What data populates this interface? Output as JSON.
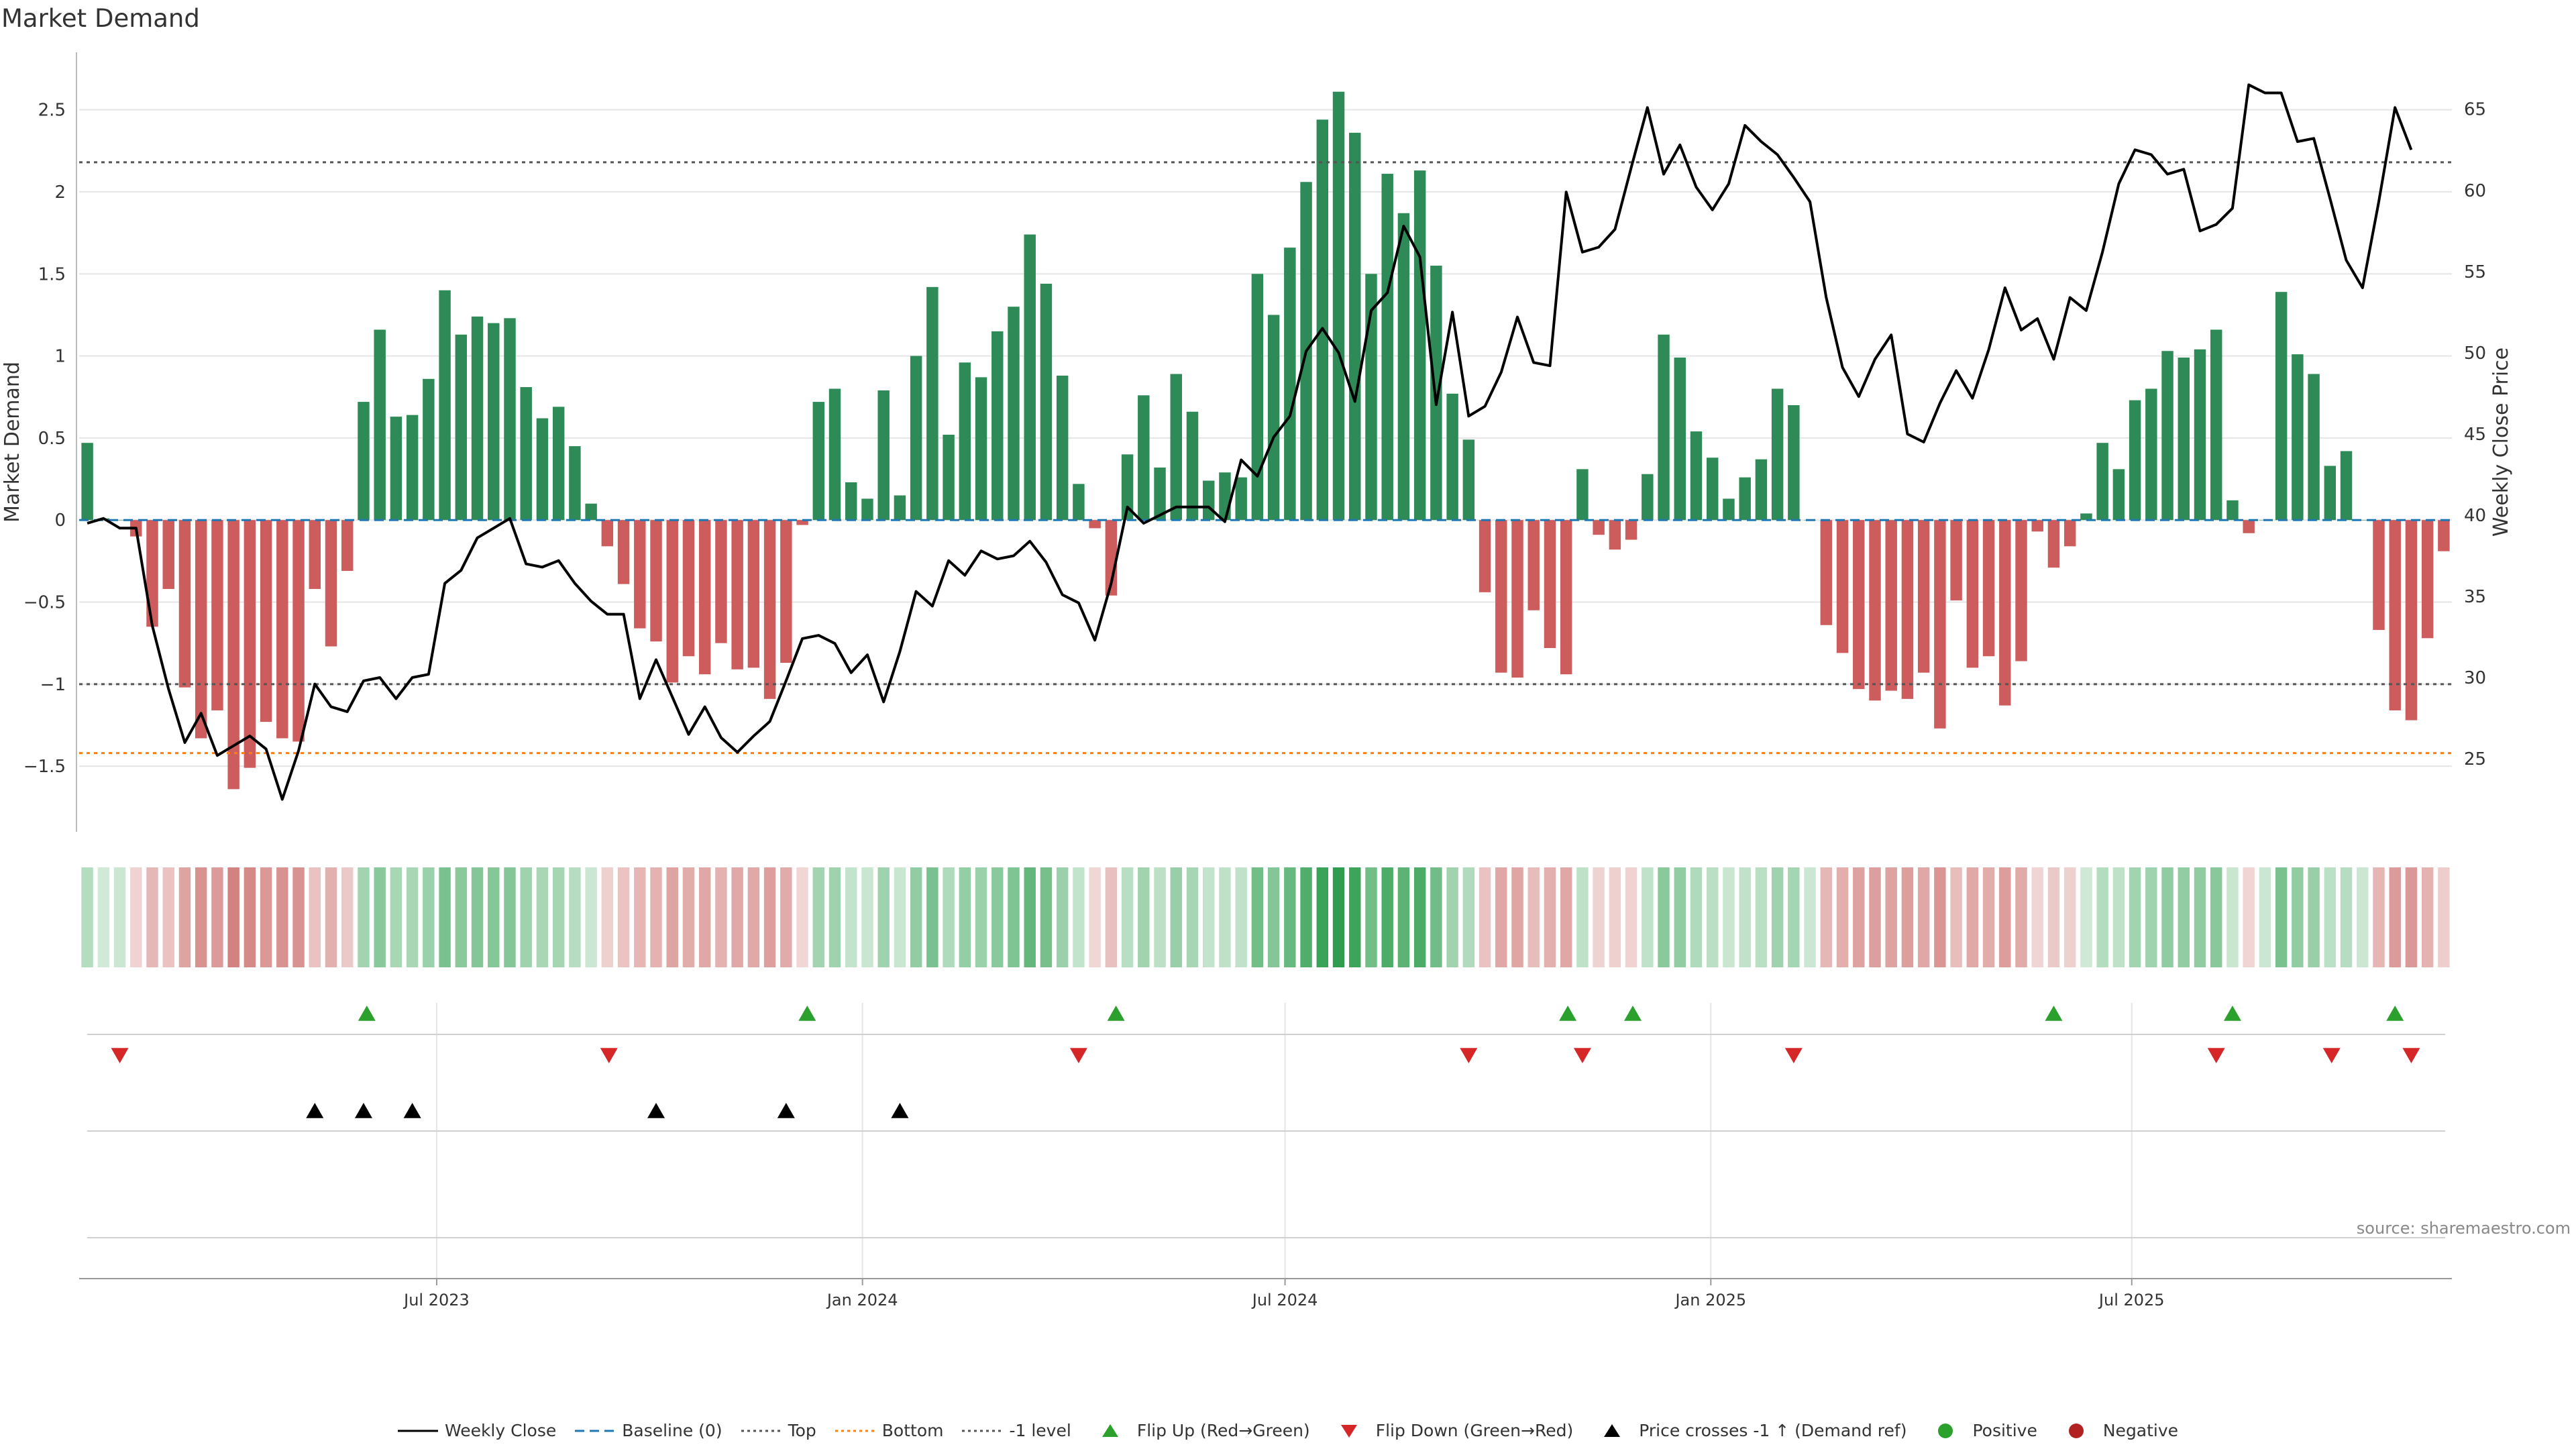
{
  "page": {
    "title": "Market Demand",
    "source": "source: sharemaestro.com"
  },
  "colors": {
    "positive": "#2e8b57",
    "negative": "#cd5c5c",
    "price_line": "#000000",
    "baseline": "#1f77b4",
    "top_line": "#555555",
    "bottom_line": "#ff7f0e",
    "level_line": "#555555",
    "flip_up": "#2ca02c",
    "flip_down": "#d62728",
    "cross_marker": "#000000",
    "dot_positive": "#2ca02c",
    "dot_negative": "#b22222",
    "grid": "#e5e5e5"
  },
  "legend": [
    {
      "label": "Weekly Close",
      "swatch": "line",
      "color": "#000000"
    },
    {
      "label": "Baseline (0)",
      "swatch": "dash",
      "color": "#1f77b4"
    },
    {
      "label": "Top",
      "swatch": "dot",
      "color": "#555555"
    },
    {
      "label": "Bottom",
      "swatch": "dot",
      "color": "#ff7f0e"
    },
    {
      "label": "-1 level",
      "swatch": "dot",
      "color": "#555555"
    },
    {
      "label": "Flip Up (Red→Green)",
      "swatch": "tri-up",
      "color": "#2ca02c"
    },
    {
      "label": "Flip Down (Green→Red)",
      "swatch": "tri-down",
      "color": "#d62728"
    },
    {
      "label": "Price crosses -1 ↑ (Demand ref)",
      "swatch": "tri-up",
      "color": "#000000"
    },
    {
      "label": "Positive",
      "swatch": "circle",
      "color": "#2ca02c"
    },
    {
      "label": "Negative",
      "swatch": "circle",
      "color": "#b22222"
    }
  ],
  "chart_data": {
    "type": "bar",
    "title": "Market Demand",
    "ylabel": "Market Demand",
    "y2label": "Weekly Close Price",
    "ylim": [
      -1.9,
      2.85
    ],
    "y2lim": [
      20.5,
      68.5
    ],
    "yticks": [
      -1.5,
      -1,
      -0.5,
      0,
      0.5,
      1,
      1.5,
      2,
      2.5
    ],
    "ytick_labels": [
      "−1.5",
      "−1",
      "−0.5",
      "0",
      "0.5",
      "1",
      "1.5",
      "2",
      "2.5"
    ],
    "y2ticks": [
      25,
      30,
      35,
      40,
      45,
      50,
      55,
      60,
      65
    ],
    "x_range_weeks": [
      0,
      144
    ],
    "xticks": [
      {
        "label": "Jul 2023",
        "week": 21.5
      },
      {
        "label": "Jan 2024",
        "week": 47.7
      },
      {
        "label": "Jul 2024",
        "week": 73.7
      },
      {
        "label": "Jan 2025",
        "week": 99.9
      },
      {
        "label": "Jul 2025",
        "week": 125.8
      }
    ],
    "reference_lines": {
      "baseline": 0,
      "top": 2.18,
      "bottom": -1.42,
      "minus_one": -1.0
    },
    "demand": [
      0.47,
      0.01,
      0,
      -0.1,
      -0.65,
      -0.42,
      -1.02,
      -1.33,
      -1.16,
      -1.64,
      -1.51,
      -1.23,
      -1.33,
      -1.35,
      -0.42,
      -0.77,
      -0.31,
      0.72,
      1.16,
      0.63,
      0.64,
      0.86,
      1.4,
      1.13,
      1.24,
      1.2,
      1.23,
      0.81,
      0.62,
      0.69,
      0.45,
      0.1,
      -0.16,
      -0.39,
      -0.66,
      -0.74,
      -0.99,
      -0.83,
      -0.94,
      -0.75,
      -0.91,
      -0.9,
      -1.09,
      -0.87,
      -0.03,
      0.72,
      0.8,
      0.23,
      0.13,
      0.79,
      0.15,
      1.0,
      1.42,
      0.52,
      0.96,
      0.87,
      1.15,
      1.3,
      1.74,
      1.44,
      0.88,
      0.22,
      -0.05,
      -0.46,
      0.4,
      0.76,
      0.32,
      0.89,
      0.66,
      0.24,
      0.29,
      0.26,
      1.5,
      1.25,
      1.66,
      2.06,
      2.44,
      2.61,
      2.36,
      1.5,
      2.11,
      1.87,
      2.13,
      1.55,
      0.77,
      0.49,
      -0.44,
      -0.93,
      -0.96,
      -0.55,
      -0.78,
      -0.94,
      0.31,
      -0.09,
      -0.18,
      -0.12,
      0.28,
      1.13,
      0.99,
      0.54,
      0.38,
      0.13,
      0.26,
      0.37,
      0.8,
      0.7,
      0.0,
      -0.64,
      -0.81,
      -1.03,
      -1.1,
      -1.04,
      -1.09,
      -0.93,
      -1.27,
      -0.49,
      -0.9,
      -0.83,
      -1.13,
      -0.86,
      -0.07,
      -0.29,
      -0.16,
      0.04,
      0.47,
      0.31,
      0.73,
      0.8,
      1.03,
      0.99,
      1.04,
      1.16,
      0.12,
      -0.08,
      0.0,
      1.39,
      1.01,
      0.89,
      0.33,
      0.42,
      0.0,
      -0.67,
      -1.16,
      -1.22,
      -0.72,
      -0.19
    ],
    "price_points": [
      [
        0,
        39.5
      ],
      [
        1,
        39.8
      ],
      [
        2,
        39.2
      ],
      [
        3,
        39.2
      ],
      [
        4,
        33.2
      ],
      [
        5,
        29.3
      ],
      [
        6,
        26.0
      ],
      [
        7,
        27.8
      ],
      [
        8,
        25.2
      ],
      [
        9,
        25.8
      ],
      [
        10,
        26.4
      ],
      [
        11,
        25.6
      ],
      [
        12,
        22.5
      ],
      [
        13,
        25.5
      ],
      [
        14,
        29.6
      ],
      [
        15,
        28.2
      ],
      [
        16,
        27.9
      ],
      [
        17,
        29.8
      ],
      [
        18,
        30.0
      ],
      [
        19,
        28.7
      ],
      [
        20,
        30.0
      ],
      [
        21,
        30.2
      ],
      [
        22,
        35.8
      ],
      [
        23,
        36.6
      ],
      [
        24,
        38.6
      ],
      [
        25,
        39.2
      ],
      [
        26,
        39.8
      ],
      [
        27,
        37.0
      ],
      [
        28,
        36.8
      ],
      [
        29,
        37.2
      ],
      [
        30,
        35.8
      ],
      [
        31,
        34.7
      ],
      [
        32,
        33.9
      ],
      [
        33,
        33.9
      ],
      [
        34,
        28.7
      ],
      [
        35,
        31.1
      ],
      [
        36,
        28.8
      ],
      [
        37,
        26.5
      ],
      [
        38,
        28.2
      ],
      [
        39,
        26.3
      ],
      [
        40,
        25.4
      ],
      [
        41,
        26.4
      ],
      [
        42,
        27.3
      ],
      [
        43,
        29.8
      ],
      [
        44,
        32.4
      ],
      [
        45,
        32.6
      ],
      [
        46,
        32.1
      ],
      [
        47,
        30.3
      ],
      [
        48,
        31.4
      ],
      [
        49,
        28.5
      ],
      [
        50,
        31.6
      ],
      [
        51,
        35.3
      ],
      [
        52,
        34.4
      ],
      [
        53,
        37.2
      ],
      [
        54,
        36.3
      ],
      [
        55,
        37.8
      ],
      [
        56,
        37.3
      ],
      [
        57,
        37.5
      ],
      [
        58,
        38.4
      ],
      [
        59,
        37.1
      ],
      [
        60,
        35.1
      ],
      [
        61,
        34.6
      ],
      [
        62,
        32.3
      ],
      [
        63,
        35.8
      ],
      [
        64,
        40.5
      ],
      [
        65,
        39.5
      ],
      [
        66,
        40.0
      ],
      [
        67,
        40.5
      ],
      [
        68,
        40.5
      ],
      [
        69,
        40.5
      ],
      [
        70,
        39.6
      ],
      [
        71,
        43.4
      ],
      [
        72,
        42.4
      ],
      [
        73,
        44.8
      ],
      [
        74,
        46.1
      ],
      [
        75,
        50.1
      ],
      [
        76,
        51.5
      ],
      [
        77,
        50.0
      ],
      [
        78,
        47.0
      ],
      [
        79,
        52.6
      ],
      [
        80,
        53.7
      ],
      [
        81,
        57.8
      ],
      [
        82,
        55.9
      ],
      [
        83,
        46.8
      ],
      [
        84,
        52.5
      ],
      [
        85,
        46.1
      ],
      [
        86,
        46.7
      ],
      [
        87,
        48.8
      ],
      [
        88,
        52.2
      ],
      [
        89,
        49.4
      ],
      [
        90,
        49.2
      ],
      [
        91,
        59.9
      ],
      [
        92,
        56.2
      ],
      [
        93,
        56.5
      ],
      [
        94,
        57.6
      ],
      [
        95,
        61.4
      ],
      [
        96,
        65.1
      ],
      [
        97,
        61.0
      ],
      [
        98,
        62.8
      ],
      [
        99,
        60.2
      ],
      [
        100,
        58.8
      ],
      [
        101,
        60.4
      ],
      [
        102,
        64.0
      ],
      [
        103,
        63.0
      ],
      [
        104,
        62.2
      ],
      [
        105,
        60.8
      ],
      [
        106,
        59.3
      ],
      [
        107,
        53.4
      ],
      [
        108,
        49.1
      ],
      [
        109,
        47.3
      ],
      [
        110,
        49.6
      ],
      [
        111,
        51.1
      ],
      [
        112,
        45.0
      ],
      [
        113,
        44.5
      ],
      [
        114,
        46.9
      ],
      [
        115,
        48.9
      ],
      [
        116,
        47.2
      ],
      [
        117,
        50.2
      ],
      [
        118,
        54.0
      ],
      [
        119,
        51.4
      ],
      [
        120,
        52.1
      ],
      [
        121,
        49.6
      ],
      [
        122,
        53.4
      ],
      [
        123,
        52.6
      ],
      [
        124,
        56.2
      ],
      [
        125,
        60.4
      ],
      [
        126,
        62.5
      ],
      [
        127,
        62.2
      ],
      [
        128,
        61.0
      ],
      [
        129,
        61.3
      ],
      [
        130,
        57.5
      ],
      [
        131,
        57.9
      ],
      [
        132,
        58.9
      ],
      [
        133,
        66.5
      ],
      [
        134,
        66.0
      ],
      [
        135,
        66.0
      ],
      [
        136,
        63.0
      ],
      [
        137,
        63.2
      ],
      [
        138,
        59.5
      ],
      [
        139,
        55.7
      ],
      [
        140,
        54.0
      ],
      [
        141,
        59.3
      ],
      [
        142,
        65.1
      ],
      [
        143,
        62.5
      ]
    ],
    "flip_up_weeks": [
      17.2,
      44.3,
      63.3,
      91.1,
      95.1,
      121.0,
      132.0,
      142.0
    ],
    "flip_down_weeks": [
      2.0,
      32.1,
      61.0,
      85.0,
      92.0,
      105.0,
      131.0,
      138.1,
      143.0
    ],
    "cross_weeks": [
      14.0,
      17.0,
      20.0,
      35.0,
      43.0,
      50.0
    ]
  }
}
